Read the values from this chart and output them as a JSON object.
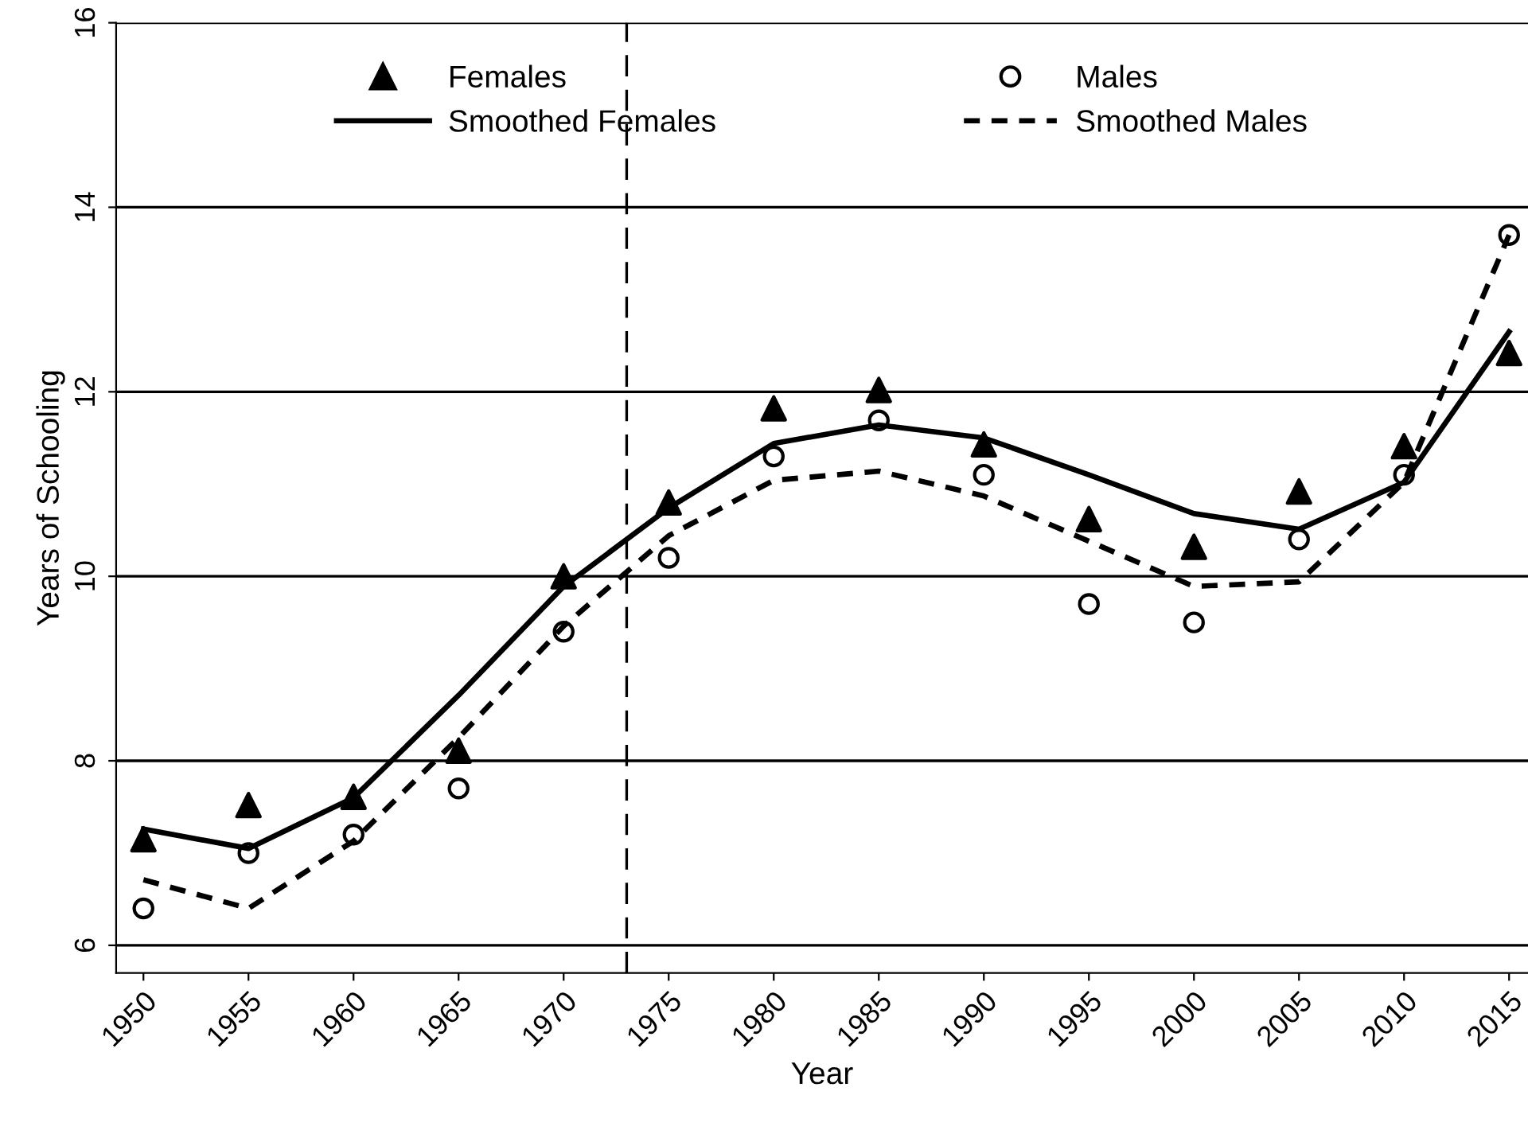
{
  "chart_data": {
    "type": "line",
    "xlabel": "Year",
    "ylabel": "Years of Schooling",
    "x": [
      1950,
      1955,
      1960,
      1965,
      1970,
      1975,
      1980,
      1985,
      1990,
      1995,
      2000,
      2005,
      2010,
      2015
    ],
    "series": [
      {
        "name": "Females",
        "type": "scatter",
        "marker": "triangle",
        "color": "#000000",
        "values": [
          7.15,
          7.52,
          7.61,
          8.11,
          10.0,
          10.8,
          11.82,
          12.02,
          11.43,
          10.62,
          10.32,
          10.92,
          11.41,
          12.42
        ]
      },
      {
        "name": "Smoothed Females",
        "line_style": "solid",
        "color": "#000000",
        "values": [
          7.26,
          7.05,
          7.6,
          8.71,
          9.89,
          10.74,
          11.44,
          11.64,
          11.5,
          11.1,
          10.68,
          10.51,
          11.02,
          12.65
        ]
      },
      {
        "name": "Males",
        "type": "scatter",
        "marker": "circle",
        "color": "#000000",
        "values": [
          6.4,
          7.0,
          7.2,
          7.7,
          9.4,
          10.2,
          11.3,
          11.69,
          11.1,
          9.7,
          9.5,
          10.4,
          11.1,
          13.7
        ]
      },
      {
        "name": "Smoothed Males",
        "line_style": "dotted",
        "color": "#000000",
        "values": [
          6.71,
          6.4,
          7.13,
          8.25,
          9.46,
          10.44,
          11.04,
          11.14,
          10.87,
          10.38,
          9.89,
          9.94,
          11.02,
          13.7
        ]
      }
    ],
    "xlim": [
      1948.7,
      2015.9
    ],
    "xticks": [
      1950,
      1955,
      1960,
      1965,
      1970,
      1975,
      1980,
      1985,
      1990,
      1995,
      2000,
      2005,
      2010,
      2015
    ],
    "ylim": [
      5.7,
      16
    ],
    "yticks": [
      6,
      8,
      10,
      12,
      14,
      16
    ],
    "ref_lines": [
      {
        "axis": "x",
        "value": 1973,
        "line_style": "dashed",
        "color": "#000000"
      }
    ],
    "grid": "y",
    "legend": "top"
  }
}
